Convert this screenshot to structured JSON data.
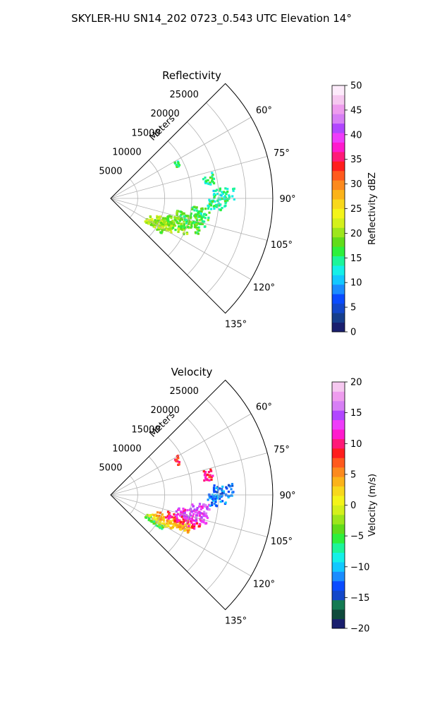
{
  "figure": {
    "suptitle": "SKYLER-HU  SN14_202  0723_0.543 UTC Elevation 14°"
  },
  "chart_data": [
    {
      "type": "heatmap",
      "projection": "polar-sector",
      "title": "Reflectivity",
      "range_label": "Meters",
      "range_ticks": [
        5000,
        10000,
        15000,
        20000,
        25000
      ],
      "range_tick_labels": [
        "5000",
        "10000",
        "15000",
        "20000",
        "25000"
      ],
      "rlim": [
        0,
        30000
      ],
      "azimuth_limits_deg": [
        45,
        135
      ],
      "azimuth_ticks_deg": [
        60,
        75,
        90,
        105,
        120,
        135
      ],
      "azimuth_tick_labels": [
        "60°",
        "75°",
        "90°",
        "105°",
        "120°",
        "135°"
      ],
      "grid": true,
      "colorbar": {
        "label": "Reflectivity dBZ",
        "range": [
          0,
          50
        ],
        "ticks": [
          0,
          5,
          10,
          15,
          20,
          25,
          30,
          35,
          40,
          45,
          50
        ],
        "tick_labels": [
          "0",
          "5",
          "10",
          "15",
          "20",
          "25",
          "30",
          "35",
          "40",
          "45",
          "50"
        ]
      },
      "echo_regions": [
        {
          "az": 121,
          "r": [
            7500,
            11500
          ],
          "value": 20
        },
        {
          "az": 117,
          "r": [
            8000,
            13000
          ],
          "value": 22
        },
        {
          "az": 113,
          "r": [
            9000,
            16000
          ],
          "value": 20
        },
        {
          "az": 109,
          "r": [
            11000,
            17500
          ],
          "value": 18
        },
        {
          "az": 104,
          "r": [
            12500,
            18500
          ],
          "value": 17
        },
        {
          "az": 99,
          "r": [
            15000,
            18500
          ],
          "value": 16
        },
        {
          "az": 93,
          "r": [
            18000,
            21500
          ],
          "value": 15
        },
        {
          "az": 88,
          "r": [
            19000,
            23000
          ],
          "value": 14
        },
        {
          "az": 79,
          "r": [
            17500,
            19500
          ],
          "value": 15
        },
        {
          "az": 63,
          "r": [
            13500,
            14500
          ],
          "value": 15
        }
      ]
    },
    {
      "type": "heatmap",
      "projection": "polar-sector",
      "title": "Velocity",
      "range_label": "Meters",
      "range_ticks": [
        5000,
        10000,
        15000,
        20000,
        25000
      ],
      "range_tick_labels": [
        "5000",
        "10000",
        "15000",
        "20000",
        "25000"
      ],
      "rlim": [
        0,
        30000
      ],
      "azimuth_limits_deg": [
        45,
        135
      ],
      "azimuth_ticks_deg": [
        60,
        75,
        90,
        105,
        120,
        135
      ],
      "azimuth_tick_labels": [
        "60°",
        "75°",
        "90°",
        "105°",
        "120°",
        "135°"
      ],
      "grid": true,
      "colorbar": {
        "label": "Velocity (m/s)",
        "range": [
          -20,
          20
        ],
        "ticks": [
          -20,
          -15,
          -10,
          -5,
          0,
          5,
          10,
          15,
          20
        ],
        "tick_labels": [
          "−20",
          "−15",
          "−10",
          "−5",
          "0",
          "5",
          "10",
          "15",
          "20"
        ]
      },
      "echo_regions": [
        {
          "az": 121,
          "r": [
            7500,
            11500
          ],
          "value": -4
        },
        {
          "az": 117,
          "r": [
            8000,
            13000
          ],
          "value": 2
        },
        {
          "az": 113,
          "r": [
            9000,
            16000
          ],
          "value": 4
        },
        {
          "az": 109,
          "r": [
            11000,
            17500
          ],
          "value": 10
        },
        {
          "az": 104,
          "r": [
            12500,
            18500
          ],
          "value": 13
        },
        {
          "az": 99,
          "r": [
            15000,
            18500
          ],
          "value": 14
        },
        {
          "az": 93,
          "r": [
            18000,
            21500
          ],
          "value": -12
        },
        {
          "az": 88,
          "r": [
            19000,
            23000
          ],
          "value": -12
        },
        {
          "az": 79,
          "r": [
            17500,
            19500
          ],
          "value": 10
        },
        {
          "az": 63,
          "r": [
            13500,
            14500
          ],
          "value": 8
        }
      ]
    }
  ],
  "colormaps": {
    "reflectivity": [
      "#1a1f6e",
      "#163e8c",
      "#1347c9",
      "#0a4bff",
      "#1a8cff",
      "#12c8ff",
      "#14f0e8",
      "#1cf59a",
      "#2ef03c",
      "#61dc1a",
      "#9de61c",
      "#d4f01c",
      "#f4f41a",
      "#f8d81c",
      "#fbb31a",
      "#fc8a1e",
      "#ff5a1e",
      "#ff1e1e",
      "#ff1a78",
      "#ff1acd",
      "#ee3cfa",
      "#b146ff",
      "#d77ff5",
      "#ee9cee",
      "#f6c8f0",
      "#fdebfb"
    ],
    "velocity": [
      "#1a1f6e",
      "#0f4a3c",
      "#137a52",
      "#1347c9",
      "#0a4bff",
      "#1a8cff",
      "#12c8ff",
      "#14f0e8",
      "#1cf59a",
      "#2ef03c",
      "#61dc1a",
      "#9de61c",
      "#d4f01c",
      "#f4f41a",
      "#f8d81c",
      "#fbb31a",
      "#fc8a1e",
      "#ff5a1e",
      "#ff1e1e",
      "#ff1a78",
      "#ff1acd",
      "#ee3cfa",
      "#b146ff",
      "#d77ff5",
      "#ee9cee",
      "#f6c8f0"
    ]
  }
}
